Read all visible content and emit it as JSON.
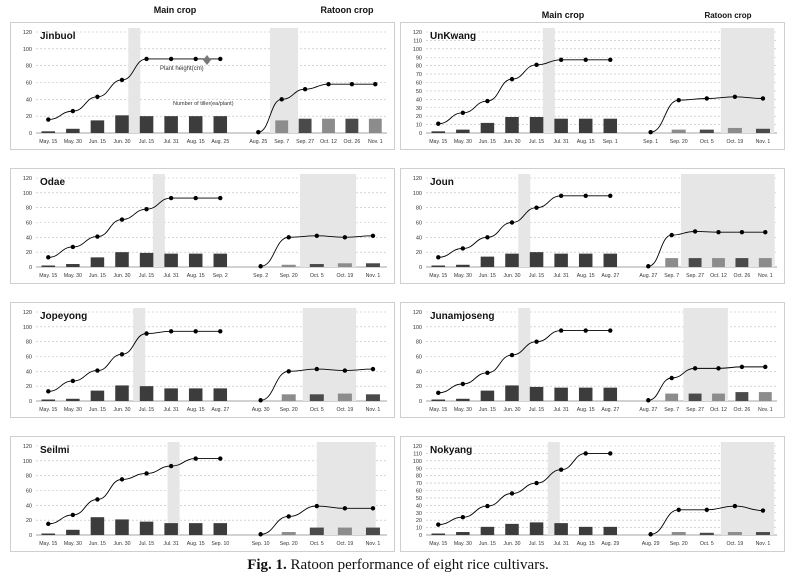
{
  "figure": {
    "caption_label": "Fig. 1.",
    "caption_text": "Ratoon performance of eight rice cultivars.",
    "main_crop_label": "Main crop",
    "ratoon_crop_label": "Ratoon crop",
    "annotation_height": "Plant height(cm)",
    "annotation_tiller": "Number of tiller(ea/plant)"
  },
  "colors": {
    "main_bar": "#3c3c3c",
    "ratoon_bar_dark": "#4a4a4a",
    "ratoon_bar_light": "#8c8c8c",
    "shade": "#e6e6e6",
    "line": "#000000",
    "grid": "#bdbdbd"
  },
  "chart_data": [
    {
      "type": "bar+line",
      "title": "Jinbuol",
      "ylim": [
        0,
        120
      ],
      "yticks": [
        0,
        20,
        40,
        60,
        80,
        100,
        120
      ],
      "main": {
        "categories": [
          "May. 15",
          "May. 30",
          "Jun. 15",
          "Jun. 30",
          "Jul. 15",
          "Jul. 31",
          "Aug. 15",
          "Aug. 25"
        ],
        "tillers": [
          2,
          5,
          15,
          21,
          20,
          20,
          20,
          20
        ],
        "height": [
          16,
          26,
          43,
          63,
          88,
          88,
          88,
          88
        ],
        "heading_index": 3.5
      },
      "ratoon": {
        "categories": [
          "Aug. 25",
          "Sep. 7",
          "Sep. 27",
          "Oct. 12",
          "Oct. 26",
          "Nov. 1"
        ],
        "tillers": [
          0,
          15,
          17,
          17,
          17,
          17
        ],
        "height": [
          1,
          40,
          52,
          58,
          58,
          58
        ],
        "heading_range": [
          0.5,
          1.7
        ]
      }
    },
    {
      "type": "bar+line",
      "title": "UnKwang",
      "ylim": [
        0,
        120
      ],
      "yticks": [
        0,
        10,
        20,
        30,
        40,
        50,
        60,
        70,
        80,
        90,
        100,
        110,
        120
      ],
      "main": {
        "categories": [
          "May. 15",
          "May. 30",
          "Jun. 15",
          "Jun. 30",
          "Jul. 15",
          "Jul. 31",
          "Aug. 15",
          "Sep. 1"
        ],
        "tillers": [
          2,
          4,
          12,
          19,
          19,
          17,
          17,
          17
        ],
        "height": [
          11,
          24,
          38,
          64,
          81,
          87,
          87,
          87
        ],
        "heading_index": 4.5
      },
      "ratoon": {
        "categories": [
          "Sep. 1",
          "Sep. 20",
          "Oct. 5",
          "Oct. 19",
          "Nov. 1"
        ],
        "tillers": [
          0,
          4,
          4,
          6,
          5
        ],
        "height": [
          1,
          39,
          41,
          43,
          41
        ],
        "heading_range": [
          2.5,
          4.4
        ]
      }
    },
    {
      "type": "bar+line",
      "title": "Odae",
      "ylim": [
        0,
        120
      ],
      "yticks": [
        0,
        20,
        40,
        60,
        80,
        100,
        120
      ],
      "main": {
        "categories": [
          "May. 15",
          "May. 30",
          "Jun. 15",
          "Jun. 30",
          "Jul. 15",
          "Jul. 31",
          "Aug. 15",
          "Sep. 2"
        ],
        "tillers": [
          2,
          4,
          13,
          20,
          19,
          18,
          18,
          18
        ],
        "height": [
          13,
          27,
          41,
          64,
          78,
          93,
          93,
          93
        ],
        "heading_index": 4.5
      },
      "ratoon": {
        "categories": [
          "Sep. 2",
          "Sep. 20",
          "Oct. 5",
          "Oct. 19",
          "Nov. 1"
        ],
        "tillers": [
          0,
          3,
          4,
          5,
          5
        ],
        "height": [
          1,
          40,
          42,
          40,
          42
        ],
        "heading_range": [
          1.4,
          3.4
        ]
      }
    },
    {
      "type": "bar+line",
      "title": "Joun",
      "ylim": [
        0,
        120
      ],
      "yticks": [
        0,
        20,
        40,
        60,
        80,
        100,
        120
      ],
      "main": {
        "categories": [
          "May. 15",
          "May. 30",
          "Jun. 15",
          "Jun. 30",
          "Jul. 15",
          "Jul. 31",
          "Aug. 15",
          "Aug. 27"
        ],
        "tillers": [
          2,
          3,
          14,
          18,
          20,
          18,
          18,
          18
        ],
        "height": [
          13,
          25,
          40,
          60,
          80,
          96,
          96,
          96
        ],
        "heading_index": 3.5
      },
      "ratoon": {
        "categories": [
          "Aug. 27",
          "Sep. 7",
          "Sep. 27",
          "Oct. 12",
          "Oct. 26",
          "Nov. 1"
        ],
        "tillers": [
          0,
          12,
          12,
          12,
          12,
          12
        ],
        "height": [
          1,
          43,
          48,
          47,
          47,
          47
        ],
        "heading_range": [
          1.4,
          5.4
        ]
      }
    },
    {
      "type": "bar+line",
      "title": "Jopeyong",
      "ylim": [
        0,
        120
      ],
      "yticks": [
        0,
        20,
        40,
        60,
        80,
        100,
        120
      ],
      "main": {
        "categories": [
          "May. 15",
          "May. 30",
          "Jun. 15",
          "Jun. 30",
          "Jul. 15",
          "Jul. 31",
          "Aug. 15",
          "Aug. 27"
        ],
        "tillers": [
          2,
          3,
          14,
          21,
          20,
          17,
          17,
          17
        ],
        "height": [
          13,
          27,
          41,
          63,
          91,
          94,
          94,
          94
        ],
        "heading_index": 3.7
      },
      "ratoon": {
        "categories": [
          "Aug. 30",
          "Sep. 20",
          "Oct. 5",
          "Oct. 19",
          "Nov. 1"
        ],
        "tillers": [
          0,
          9,
          9,
          10,
          9
        ],
        "height": [
          1,
          40,
          43,
          41,
          43
        ],
        "heading_range": [
          1.5,
          3.4
        ]
      }
    },
    {
      "type": "bar+line",
      "title": "Junamjoseng",
      "ylim": [
        0,
        120
      ],
      "yticks": [
        0,
        20,
        40,
        60,
        80,
        100,
        120
      ],
      "main": {
        "categories": [
          "May. 15",
          "May. 30",
          "Jun. 15",
          "Jun. 30",
          "Jul. 15",
          "Jul. 31",
          "Aug. 15",
          "Aug. 27"
        ],
        "tillers": [
          2,
          3,
          14,
          21,
          19,
          18,
          18,
          18
        ],
        "height": [
          11,
          23,
          38,
          62,
          80,
          95,
          95,
          95
        ],
        "heading_index": 3.5
      },
      "ratoon": {
        "categories": [
          "Aug. 27",
          "Sep. 7",
          "Sep. 27",
          "Oct. 12",
          "Oct. 26",
          "Nov. 1"
        ],
        "tillers": [
          0,
          10,
          10,
          10,
          12,
          12
        ],
        "height": [
          1,
          31,
          44,
          44,
          46,
          46
        ],
        "heading_range": [
          1.5,
          3.4
        ]
      }
    },
    {
      "type": "bar+line",
      "title": "Seilmi",
      "ylim": [
        0,
        120
      ],
      "yticks": [
        0,
        20,
        40,
        60,
        80,
        100,
        120
      ],
      "main": {
        "categories": [
          "May. 15",
          "May. 30",
          "Jun. 15",
          "Jun. 30",
          "Jul. 15",
          "Jul. 31",
          "Aug. 15",
          "Sep. 10"
        ],
        "tillers": [
          2,
          7,
          24,
          21,
          18,
          16,
          16,
          16
        ],
        "height": [
          15,
          27,
          48,
          75,
          83,
          93,
          103,
          103
        ],
        "heading_index": 5.1
      },
      "ratoon": {
        "categories": [
          "Sep. 10",
          "Sep. 20",
          "Oct. 5",
          "Oct. 19",
          "Nov. 1"
        ],
        "tillers": [
          0,
          4,
          10,
          10,
          10
        ],
        "height": [
          1,
          25,
          39,
          36,
          36
        ],
        "heading_range": [
          2.0,
          4.1
        ]
      }
    },
    {
      "type": "bar+line",
      "title": "Nokyang",
      "ylim": [
        0,
        120
      ],
      "yticks": [
        0,
        10,
        20,
        30,
        40,
        50,
        60,
        70,
        80,
        90,
        100,
        110,
        120
      ],
      "main": {
        "categories": [
          "May. 15",
          "May. 30",
          "Jun. 15",
          "Jun. 30",
          "Jul. 15",
          "Jul. 31",
          "Aug. 15",
          "Aug. 29"
        ],
        "tillers": [
          2,
          4,
          11,
          15,
          17,
          16,
          11,
          11
        ],
        "height": [
          14,
          24,
          39,
          56,
          70,
          88,
          110,
          110
        ],
        "heading_index": 4.7
      },
      "ratoon": {
        "categories": [
          "Aug. 29",
          "Sep. 20",
          "Oct. 5",
          "Oct. 19",
          "Nov. 1"
        ],
        "tillers": [
          0,
          4,
          3,
          4,
          4
        ],
        "height": [
          1,
          34,
          34,
          39,
          33
        ],
        "heading_range": [
          2.5,
          4.4
        ]
      }
    }
  ]
}
